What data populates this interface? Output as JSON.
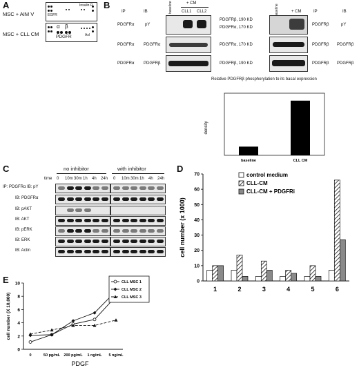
{
  "panelA": {
    "letter": "A",
    "row1_label": "MSC + AIM V",
    "row2_label": "MSC + CLL CM",
    "egfr": "EGFR",
    "insulin_r": "Insulin R",
    "axl": "Axl",
    "alpha": "α",
    "beta": "β",
    "pdgfr": "PDGFR"
  },
  "panelB": {
    "letter": "B",
    "ip_header": "IP",
    "ib_header": "IB",
    "baseline": "baseline",
    "cm_header": "+ CM",
    "cll1": "CLL1",
    "cll2": "CLL2",
    "left_rows": [
      {
        "ip": "PDGFRα",
        "ib": "pY"
      },
      {
        "ip": "PDGFRα",
        "ib": "PDGFRα"
      },
      {
        "ip": "PDGFRα",
        "ib": "PDGFRβ"
      }
    ],
    "mid_labels": {
      "r1a": "PDGFRβ, 190 KD",
      "r1b": "PDGFRα, 170 KD",
      "r2": "PDGFRα, 170 KD",
      "r3": "PDGFRβ, 190 KD"
    },
    "right_rows": [
      {
        "ip": "PDGFRβ",
        "ib": "pY"
      },
      {
        "ip": "PDGFRβ",
        "ib": "PDGFRβ"
      },
      {
        "ip": "PDGFRβ",
        "ib": "PDGFRβ"
      }
    ],
    "right_baseline": "baseline",
    "right_cm": "+ CM"
  },
  "chartB": {
    "title": "Relative PDGFRβ phosphorylation to its basal expression",
    "ylabel": "density",
    "categories": [
      "baseline",
      "CLL CM"
    ]
  },
  "panelC": {
    "letter": "C",
    "no_inhibitor": "no inhibitor",
    "with_inhibitor": "with inhibitor",
    "time_label": "time",
    "times": [
      "0",
      "10m",
      "30m",
      "1h",
      "4h",
      "24h"
    ],
    "rows": [
      "IP: PDGFRα  IB: pY",
      "IB: PDGFRα",
      "IB: pAKT",
      "IB: AKT",
      "IB: pERK",
      "IB: ERK",
      "IB: Actin"
    ]
  },
  "panelD": {
    "letter": "D",
    "legend": [
      "control medium",
      "CLL-CM",
      "CLL-CM + PDGFRi"
    ]
  },
  "panelE": {
    "letter": "E",
    "legend": [
      "CLL MSC 1",
      "CLL MSC 2",
      "CLL MSC 3"
    ],
    "xtitle": "PDGF"
  },
  "chart_data": [
    {
      "type": "bar",
      "title": "Relative PDGFRβ phosphorylation to its basal expression",
      "ylabel": "density",
      "categories": [
        "baseline",
        "CLL CM"
      ],
      "values": [
        7,
        44
      ],
      "ylim": [
        0,
        50
      ]
    },
    {
      "type": "bar",
      "xlabel": "",
      "ylabel": "cell number (x 1000)",
      "categories": [
        "1",
        "2",
        "3",
        "4",
        "5",
        "6"
      ],
      "series": [
        {
          "name": "control medium",
          "values": [
            7,
            7,
            3,
            3,
            3,
            7
          ]
        },
        {
          "name": "CLL-CM",
          "values": [
            10,
            17,
            13,
            7,
            10,
            66
          ]
        },
        {
          "name": "CLL-CM + PDGFRi",
          "values": [
            10,
            3,
            7,
            5,
            3,
            27
          ]
        }
      ],
      "ylim": [
        0,
        70
      ],
      "yticks": [
        0,
        10,
        20,
        30,
        40,
        50,
        60,
        70
      ]
    },
    {
      "type": "line",
      "xlabel": "PDGF",
      "ylabel": "cell number (X 10,000)",
      "categories": [
        "0",
        "50 pg/mL",
        "200 pg/mL",
        "1 ng/mL",
        "5 ng/mL"
      ],
      "series": [
        {
          "name": "CLL MSC 1",
          "values": [
            1.1,
            2.2,
            3.8,
            4.5,
            8.0
          ]
        },
        {
          "name": "CLL MSC 2",
          "values": [
            2.1,
            2.2,
            4.3,
            5.5,
            8.8
          ]
        },
        {
          "name": "CLL MSC 3",
          "values": [
            2.3,
            2.9,
            3.6,
            3.6,
            4.4
          ]
        }
      ],
      "ylim": [
        0,
        10
      ],
      "yticks": [
        0,
        2,
        4,
        6,
        8,
        10
      ]
    }
  ]
}
